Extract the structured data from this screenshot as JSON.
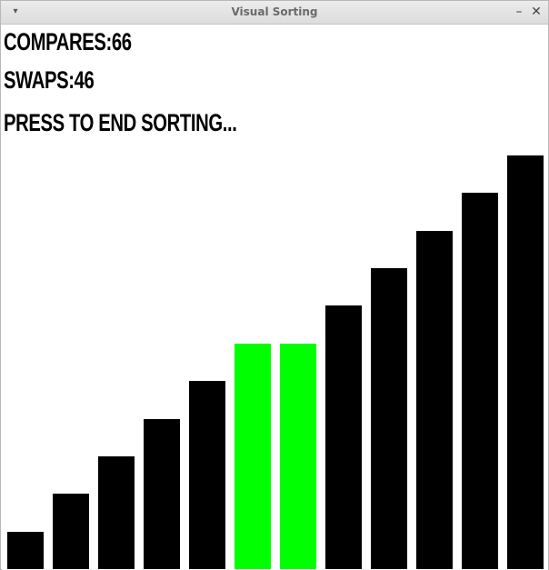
{
  "window": {
    "title": "Visual Sorting",
    "menu_icon": "chevron-down-icon",
    "minimize_icon": "minimize-icon",
    "close_icon": "close-icon",
    "minimize_glyph": "–",
    "close_glyph": "✕",
    "menu_glyph": "▾"
  },
  "status": {
    "compares": "COMPARES:66",
    "swaps": "SWAPS:46",
    "prompt": "PRESS TO END SORTING..."
  },
  "colors": {
    "bar_default": "#000000",
    "bar_active": "#00ff00",
    "background": "#ffffff"
  },
  "chart_data": {
    "type": "bar",
    "values": [
      1,
      2,
      3,
      4,
      5,
      6,
      6,
      7,
      8,
      9,
      10,
      11
    ],
    "ylim": [
      0,
      11
    ],
    "highlighted_indices": [
      5,
      6
    ]
  }
}
